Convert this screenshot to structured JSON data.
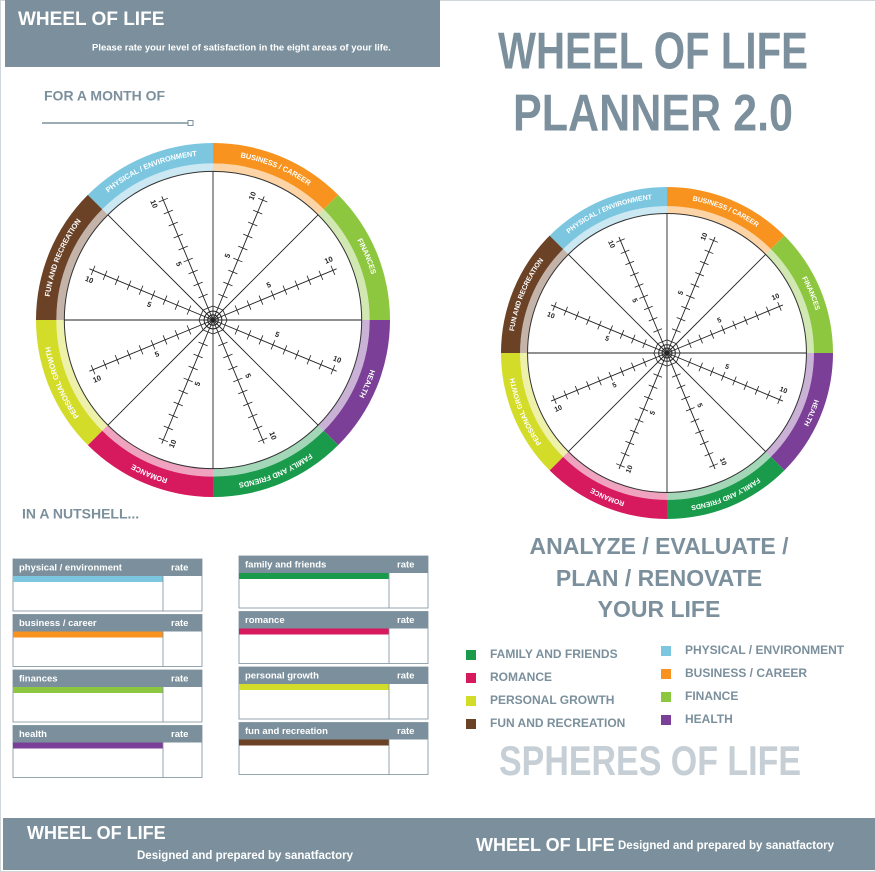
{
  "header": {
    "title": "WHEEL OF LIFE",
    "subtitle": "Please rate your level of satisfaction in the eight areas of your life."
  },
  "month_label": "FOR A MONTH OF",
  "planner_title": [
    "WHEEL OF LIFE",
    "PLANNER 2.0"
  ],
  "wheel": {
    "sectors": [
      {
        "label": "PHYSICAL / ENVIRONMENT",
        "color": "#7cc6e0"
      },
      {
        "label": "BUSINESS / CAREER",
        "color": "#f7931e"
      },
      {
        "label": "FINANCES",
        "color": "#8dc63f"
      },
      {
        "label": "HEALTH",
        "color": "#7b3f98"
      },
      {
        "label": "FAMILY AND FRIENDS",
        "color": "#1a9b4b"
      },
      {
        "label": "ROMANCE",
        "color": "#d7195e"
      },
      {
        "label": "PERSONAL GROWTH",
        "color": "#d4dc2a"
      },
      {
        "label": "FUN AND RECREATION",
        "color": "#6b4226"
      }
    ],
    "scale": [
      5,
      10
    ]
  },
  "nutshell": {
    "title": "IN A NUTSHELL...",
    "rate_label": "rate",
    "items": [
      {
        "label": "physical / environment",
        "color": "#7cc6e0"
      },
      {
        "label": "business / career",
        "color": "#f7931e"
      },
      {
        "label": "finances",
        "color": "#8dc63f"
      },
      {
        "label": "health",
        "color": "#7b3f98"
      },
      {
        "label": "family and friends",
        "color": "#1a9b4b"
      },
      {
        "label": "romance",
        "color": "#d7195e"
      },
      {
        "label": "personal growth",
        "color": "#d4dc2a"
      },
      {
        "label": "fun and recreation",
        "color": "#6b4226"
      }
    ]
  },
  "tagline": [
    "ANALYZE / EVALUATE /",
    "PLAN / RENOVATE",
    "YOUR LIFE"
  ],
  "legend": [
    {
      "label": "FAMILY AND FRIENDS",
      "color": "#1a9b4b"
    },
    {
      "label": "ROMANCE",
      "color": "#d7195e"
    },
    {
      "label": "PERSONAL GROWTH",
      "color": "#d4dc2a"
    },
    {
      "label": "FUN AND RECREATION",
      "color": "#6b4226"
    },
    {
      "label": "PHYSICAL / ENVIRONMENT",
      "color": "#7cc6e0"
    },
    {
      "label": "BUSINESS / CAREER",
      "color": "#f7931e"
    },
    {
      "label": "FINANCE",
      "color": "#8dc63f"
    },
    {
      "label": "HEALTH",
      "color": "#7b3f98"
    }
  ],
  "spheres_title": "SPHERES OF LIFE",
  "footer": {
    "left": {
      "title": "WHEEL OF LIFE",
      "credit": "Designed and prepared by sanatfactory"
    },
    "right": {
      "title": "WHEEL OF LIFE",
      "credit": "Designed and prepared by sanatfactory"
    }
  }
}
